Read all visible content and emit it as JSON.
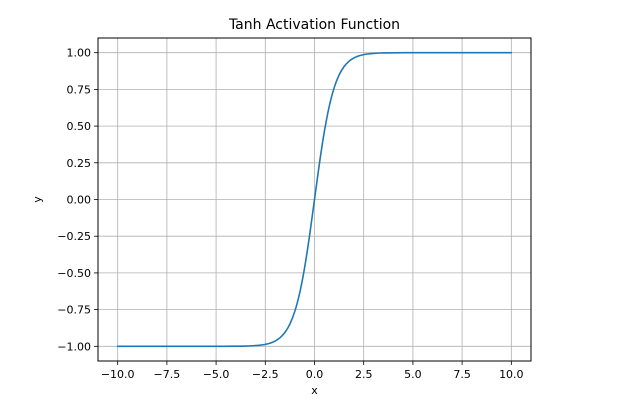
{
  "chart_data": {
    "type": "line",
    "title": "Tanh Activation Function",
    "xlabel": "x",
    "ylabel": "y",
    "xlim": [
      -11,
      11
    ],
    "ylim": [
      -1.1,
      1.1
    ],
    "grid": true,
    "x_ticks": [
      -10.0,
      -7.5,
      -5.0,
      -2.5,
      0.0,
      2.5,
      5.0,
      7.5,
      10.0
    ],
    "x_tick_labels": [
      "−10.0",
      "−7.5",
      "−5.0",
      "−2.5",
      "0.0",
      "2.5",
      "5.0",
      "7.5",
      "10.0"
    ],
    "y_ticks": [
      -1.0,
      -0.75,
      -0.5,
      -0.25,
      0.0,
      0.25,
      0.5,
      0.75,
      1.0
    ],
    "y_tick_labels": [
      "−1.00",
      "−0.75",
      "−0.50",
      "−0.25",
      "0.00",
      "0.25",
      "0.50",
      "0.75",
      "1.00"
    ],
    "series": [
      {
        "color": "#1f77b4",
        "x": [
          -10,
          -9,
          -8,
          -7,
          -6,
          -5,
          -4,
          -3.5,
          -3,
          -2.75,
          -2.5,
          -2.25,
          -2,
          -1.75,
          -1.5,
          -1.25,
          -1,
          -0.75,
          -0.5,
          -0.25,
          0,
          0.25,
          0.5,
          0.75,
          1,
          1.25,
          1.5,
          1.75,
          2,
          2.25,
          2.5,
          2.75,
          3,
          3.5,
          4,
          5,
          6,
          7,
          8,
          9,
          10
        ],
        "y": [
          -1.0,
          -1.0,
          -1.0,
          -1.0,
          -1.0,
          -0.9999,
          -0.9993,
          -0.9982,
          -0.9951,
          -0.9918,
          -0.9866,
          -0.978,
          -0.964,
          -0.9414,
          -0.9051,
          -0.8483,
          -0.7616,
          -0.6351,
          -0.4621,
          -0.2449,
          0.0,
          0.2449,
          0.4621,
          0.6351,
          0.7616,
          0.8483,
          0.9051,
          0.9414,
          0.964,
          0.978,
          0.9866,
          0.9918,
          0.9951,
          0.9982,
          0.9993,
          0.9999,
          1.0,
          1.0,
          1.0,
          1.0,
          1.0
        ]
      }
    ]
  }
}
